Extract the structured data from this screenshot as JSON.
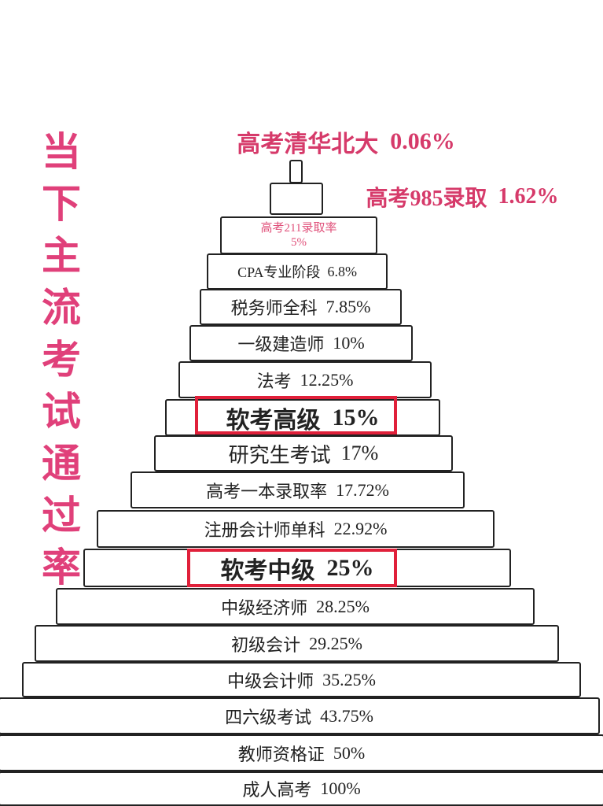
{
  "title": "当下主流考试通过率",
  "items": [
    {
      "name": "高考清华北大",
      "rate": "0.06%"
    },
    {
      "name": "高考985录取",
      "rate": "1.62%"
    },
    {
      "name": "高考211录取率",
      "rate": "5%"
    },
    {
      "name": "CPA专业阶段",
      "rate": "6.8%"
    },
    {
      "name": "税务师全科",
      "rate": "7.85%"
    },
    {
      "name": "一级建造师",
      "rate": "10%"
    },
    {
      "name": "法考",
      "rate": "12.25%"
    },
    {
      "name": "软考高级",
      "rate": "15%"
    },
    {
      "name": "研究生考试",
      "rate": "17%"
    },
    {
      "name": "高考一本录取率",
      "rate": "17.72%"
    },
    {
      "name": "注册会计师单科",
      "rate": "22.92%"
    },
    {
      "name": "软考中级",
      "rate": "25%"
    },
    {
      "name": "中级经济师",
      "rate": "28.25%"
    },
    {
      "name": "初级会计",
      "rate": "29.25%"
    },
    {
      "name": "中级会计师",
      "rate": "35.25%"
    },
    {
      "name": "四六级考试",
      "rate": "43.75%"
    },
    {
      "name": "教师资格证",
      "rate": "50%"
    },
    {
      "name": "成人高考",
      "rate": "100%"
    }
  ]
}
